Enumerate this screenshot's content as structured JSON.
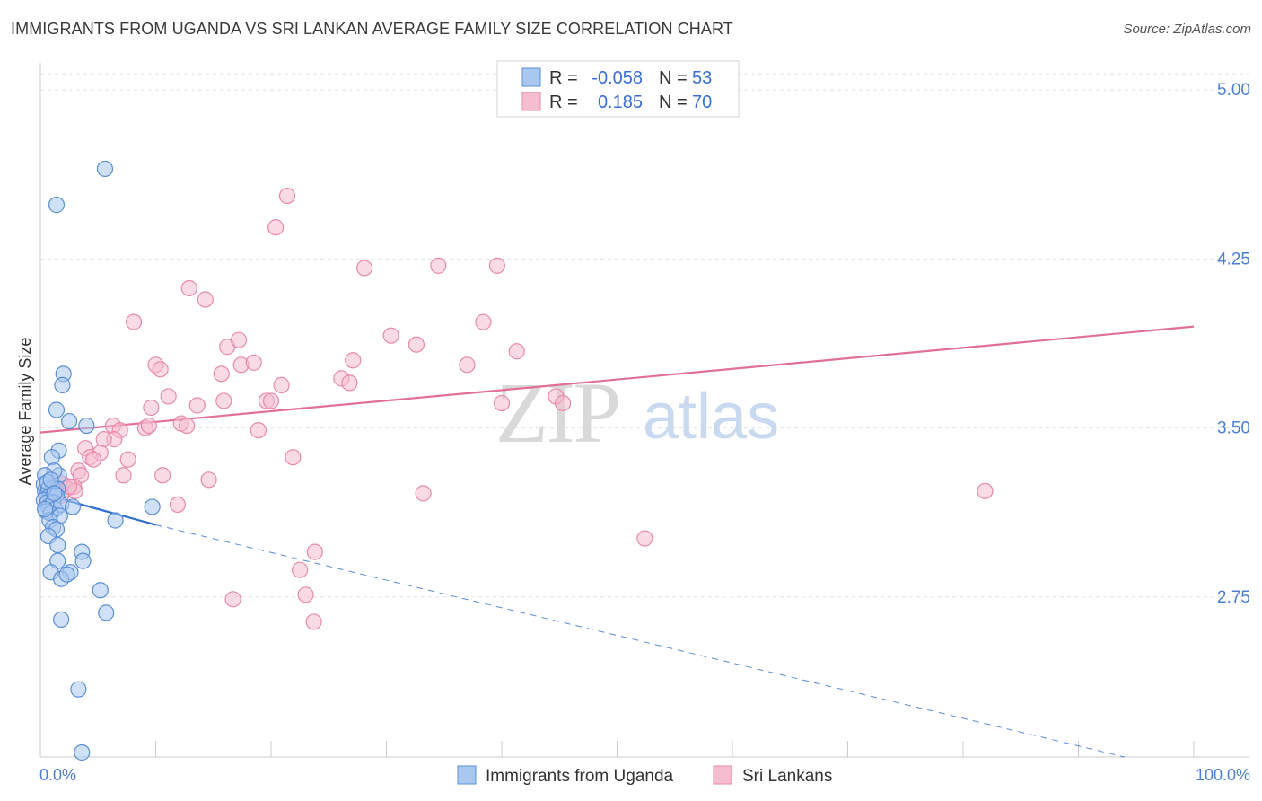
{
  "title": "IMMIGRANTS FROM UGANDA VS SRI LANKAN AVERAGE FAMILY SIZE CORRELATION CHART",
  "source": "Source: ZipAtlas.com",
  "watermark": {
    "zip": "ZIP",
    "atlas": "atlas"
  },
  "colors": {
    "uganda_fill": "#a9c8f0",
    "uganda_stroke": "#5a8fd8",
    "uganda_line": "#2f6fd0",
    "srilanka_fill": "#f6bcd0",
    "srilanka_stroke": "#e88aaa",
    "srilanka_line": "#e0709a",
    "tick_text": "#4a7fd4",
    "grid": "#e3e3e3"
  },
  "legend": {
    "rows": [
      {
        "r_label": "R =",
        "r_value": "-0.058",
        "n_label": "N =",
        "n_value": "53"
      },
      {
        "r_label": "R =",
        "r_value": "0.185",
        "n_label": "N =",
        "n_value": "70"
      }
    ]
  },
  "chart_data": {
    "type": "scatter",
    "title": "IMMIGRANTS FROM UGANDA VS SRI LANKAN AVERAGE FAMILY SIZE CORRELATION CHART",
    "xlabel": "",
    "ylabel": "Average Family Size",
    "xlim": [
      0,
      100
    ],
    "ylim": [
      2.04,
      5.12
    ],
    "x_tick_labels": [
      "0.0%",
      "100.0%"
    ],
    "y_ticks": [
      2.75,
      3.5,
      4.25,
      5.0
    ],
    "y_tick_labels": [
      "2.75",
      "3.50",
      "4.25",
      "5.00"
    ],
    "grid": true,
    "legend_position": "top-center",
    "series": [
      {
        "name": "Immigrants from Uganda",
        "points": [
          [
            5.6,
            4.65
          ],
          [
            1.4,
            4.49
          ],
          [
            2.0,
            3.74
          ],
          [
            1.9,
            3.69
          ],
          [
            1.4,
            3.58
          ],
          [
            4.0,
            3.51
          ],
          [
            2.5,
            3.53
          ],
          [
            1.6,
            3.4
          ],
          [
            1.0,
            3.37
          ],
          [
            1.6,
            3.29
          ],
          [
            1.2,
            3.31
          ],
          [
            0.4,
            3.29
          ],
          [
            0.3,
            3.25
          ],
          [
            0.4,
            3.22
          ],
          [
            0.5,
            3.2
          ],
          [
            0.7,
            3.23
          ],
          [
            1.1,
            3.23
          ],
          [
            1.5,
            3.23
          ],
          [
            0.8,
            3.2
          ],
          [
            1.4,
            3.2
          ],
          [
            0.3,
            3.18
          ],
          [
            0.6,
            3.17
          ],
          [
            0.7,
            3.15
          ],
          [
            1.1,
            3.17
          ],
          [
            1.3,
            3.14
          ],
          [
            1.8,
            3.16
          ],
          [
            2.8,
            3.15
          ],
          [
            0.5,
            3.13
          ],
          [
            0.9,
            3.12
          ],
          [
            1.7,
            3.11
          ],
          [
            0.8,
            3.09
          ],
          [
            1.1,
            3.06
          ],
          [
            1.4,
            3.05
          ],
          [
            0.7,
            3.02
          ],
          [
            1.5,
            2.98
          ],
          [
            3.6,
            2.95
          ],
          [
            1.5,
            2.91
          ],
          [
            3.7,
            2.91
          ],
          [
            0.9,
            2.86
          ],
          [
            2.6,
            2.86
          ],
          [
            1.8,
            2.83
          ],
          [
            2.3,
            2.85
          ],
          [
            5.2,
            2.78
          ],
          [
            1.8,
            2.65
          ],
          [
            5.7,
            2.68
          ],
          [
            3.3,
            2.34
          ],
          [
            3.6,
            2.06
          ],
          [
            9.7,
            3.15
          ],
          [
            6.5,
            3.09
          ],
          [
            0.6,
            3.26
          ],
          [
            0.9,
            3.27
          ],
          [
            1.2,
            3.21
          ],
          [
            0.4,
            3.14
          ]
        ],
        "trend_solid": [
          [
            0,
            3.21
          ],
          [
            10,
            3.07
          ]
        ],
        "trend_dashed": [
          [
            10,
            3.07
          ],
          [
            94,
            2.04
          ]
        ]
      },
      {
        "name": "Sri Lankans",
        "points": [
          [
            21.4,
            4.53
          ],
          [
            20.4,
            4.39
          ],
          [
            28.1,
            4.21
          ],
          [
            34.5,
            4.22
          ],
          [
            39.6,
            4.22
          ],
          [
            12.9,
            4.12
          ],
          [
            14.3,
            4.07
          ],
          [
            8.1,
            3.97
          ],
          [
            38.4,
            3.97
          ],
          [
            30.4,
            3.91
          ],
          [
            16.2,
            3.86
          ],
          [
            17.2,
            3.89
          ],
          [
            32.6,
            3.87
          ],
          [
            41.3,
            3.84
          ],
          [
            27.1,
            3.8
          ],
          [
            10.0,
            3.78
          ],
          [
            17.4,
            3.78
          ],
          [
            18.5,
            3.79
          ],
          [
            37.0,
            3.78
          ],
          [
            10.4,
            3.76
          ],
          [
            15.7,
            3.74
          ],
          [
            26.1,
            3.72
          ],
          [
            26.8,
            3.7
          ],
          [
            20.9,
            3.69
          ],
          [
            11.1,
            3.64
          ],
          [
            15.9,
            3.62
          ],
          [
            19.6,
            3.62
          ],
          [
            44.7,
            3.64
          ],
          [
            45.3,
            3.61
          ],
          [
            13.6,
            3.6
          ],
          [
            20.0,
            3.62
          ],
          [
            40.0,
            3.61
          ],
          [
            9.6,
            3.59
          ],
          [
            12.2,
            3.52
          ],
          [
            6.3,
            3.51
          ],
          [
            9.1,
            3.5
          ],
          [
            12.7,
            3.51
          ],
          [
            6.9,
            3.49
          ],
          [
            9.4,
            3.51
          ],
          [
            18.9,
            3.49
          ],
          [
            6.4,
            3.45
          ],
          [
            5.5,
            3.45
          ],
          [
            3.9,
            3.41
          ],
          [
            5.2,
            3.39
          ],
          [
            4.3,
            3.37
          ],
          [
            21.9,
            3.37
          ],
          [
            7.6,
            3.36
          ],
          [
            4.6,
            3.36
          ],
          [
            3.3,
            3.31
          ],
          [
            3.5,
            3.29
          ],
          [
            10.6,
            3.29
          ],
          [
            7.2,
            3.29
          ],
          [
            14.6,
            3.27
          ],
          [
            2.0,
            3.25
          ],
          [
            2.9,
            3.24
          ],
          [
            1.6,
            3.26
          ],
          [
            2.3,
            3.23
          ],
          [
            3.0,
            3.22
          ],
          [
            33.2,
            3.21
          ],
          [
            81.9,
            3.22
          ],
          [
            11.9,
            3.16
          ],
          [
            52.4,
            3.01
          ],
          [
            23.8,
            2.95
          ],
          [
            22.5,
            2.87
          ],
          [
            23.0,
            2.76
          ],
          [
            16.7,
            2.74
          ],
          [
            23.7,
            2.64
          ],
          [
            1.8,
            3.2
          ],
          [
            2.5,
            3.24
          ],
          [
            1.3,
            3.23
          ]
        ],
        "trend_solid": [
          [
            0,
            3.48
          ],
          [
            100,
            3.95
          ]
        ]
      }
    ]
  }
}
